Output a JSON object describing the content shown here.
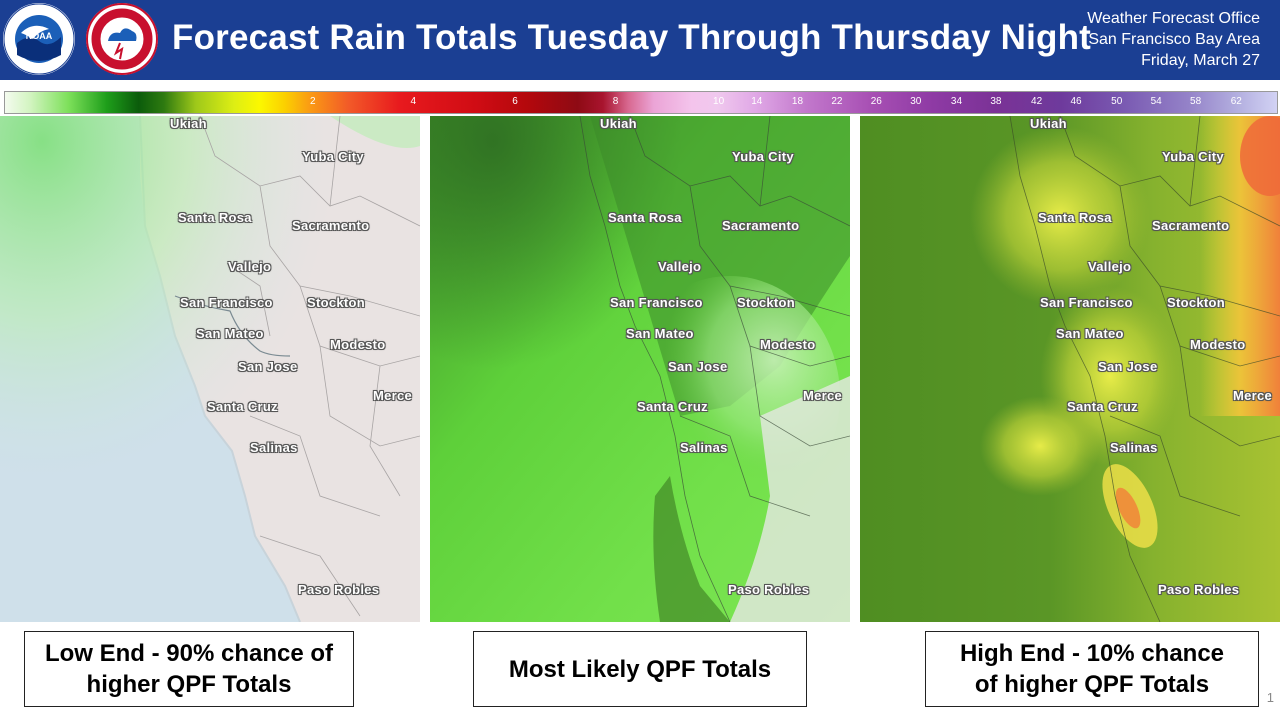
{
  "header": {
    "title": "Forecast Rain Totals Tuesday Through Thursday Night",
    "office": "Weather Forecast Office",
    "area": "San Francisco Bay Area",
    "date": "Friday, March 27",
    "logos": [
      "noaa-logo",
      "nws-logo"
    ],
    "background_color": "#1b3f93"
  },
  "legend": {
    "ticks": [
      "2",
      "4",
      "6",
      "8",
      "10",
      "14",
      "18",
      "22",
      "26",
      "30",
      "34",
      "38",
      "42",
      "46",
      "50",
      "54",
      "58",
      "62"
    ]
  },
  "maps": [
    {
      "id": "low",
      "cities": [
        "Ukiah",
        "Yuba City",
        "Santa Rosa",
        "Sacramento",
        "Vallejo",
        "San Francisco",
        "Stockton",
        "San Mateo",
        "Modesto",
        "San Jose",
        "Merce",
        "Santa Cruz",
        "Salinas",
        "Paso Robles"
      ]
    },
    {
      "id": "likely",
      "cities": [
        "Ukiah",
        "Yuba City",
        "Santa Rosa",
        "Sacramento",
        "Vallejo",
        "San Francisco",
        "Stockton",
        "San Mateo",
        "Modesto",
        "San Jose",
        "Merce",
        "Santa Cruz",
        "Salinas",
        "Paso Robles"
      ]
    },
    {
      "id": "high",
      "cities": [
        "Ukiah",
        "Yuba City",
        "Santa Rosa",
        "Sacramento",
        "Vallejo",
        "San Francisco",
        "Stockton",
        "San Mateo",
        "Modesto",
        "San Jose",
        "Merce",
        "Santa Cruz",
        "Salinas",
        "Paso Robles"
      ]
    }
  ],
  "captions": {
    "low_line1": "Low End - 90% chance of",
    "low_line2": "higher QPF Totals",
    "likely": "Most Likely QPF Totals",
    "high_line1": "High End - 10% chance",
    "high_line2": "of higher QPF Totals"
  },
  "page_number": "1"
}
